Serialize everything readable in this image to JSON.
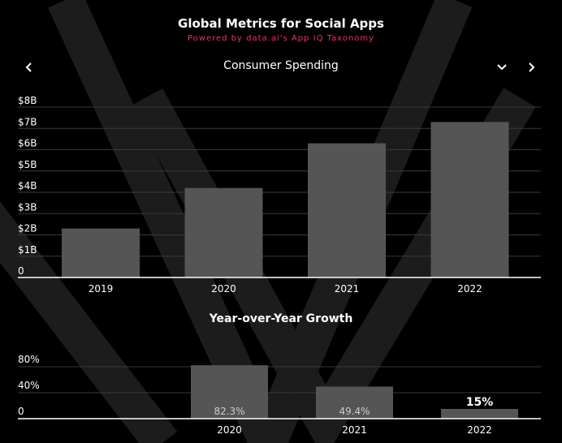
{
  "header": {
    "title": "Global Metrics for Social Apps",
    "subtitle": "Powered by data.ai's App IQ Taxonomy"
  },
  "metric_selector": {
    "label": "Consumer Spending",
    "prev_icon": "chevron-left-icon",
    "next_icon": "chevron-right-icon",
    "dropdown_icon": "chevron-down-icon"
  },
  "growth_section": {
    "title": "Year-over-Year Growth"
  },
  "colors": {
    "background": "#000000",
    "bar": "#555555",
    "accent": "#e8336a",
    "grid": "#3a3a3a"
  },
  "chart_data": [
    {
      "type": "bar",
      "categories": [
        "2019",
        "2020",
        "2021",
        "2022"
      ],
      "values": [
        2.3,
        4.2,
        6.3,
        7.3
      ],
      "title": "Consumer Spending",
      "ylim": [
        0,
        8
      ],
      "yticks": [
        {
          "value": 0,
          "label": "0"
        },
        {
          "value": 1,
          "label": "$1B"
        },
        {
          "value": 2,
          "label": "$2B"
        },
        {
          "value": 3,
          "label": "$3B"
        },
        {
          "value": 4,
          "label": "$4B"
        },
        {
          "value": 5,
          "label": "$5B"
        },
        {
          "value": 6,
          "label": "$6B"
        },
        {
          "value": 7,
          "label": "$7B"
        },
        {
          "value": 8,
          "label": "$8B"
        }
      ],
      "grid": true
    },
    {
      "type": "bar",
      "categories": [
        "2020",
        "2021",
        "2022"
      ],
      "values": [
        82.3,
        49.4,
        15
      ],
      "data_labels": [
        "82.3%",
        "49.4%",
        "15%"
      ],
      "title": "Year-over-Year Growth",
      "ylim": [
        0,
        80
      ],
      "yticks": [
        {
          "value": 0,
          "label": "0"
        },
        {
          "value": 40,
          "label": "40%"
        },
        {
          "value": 80,
          "label": "80%"
        }
      ],
      "grid": true
    }
  ]
}
